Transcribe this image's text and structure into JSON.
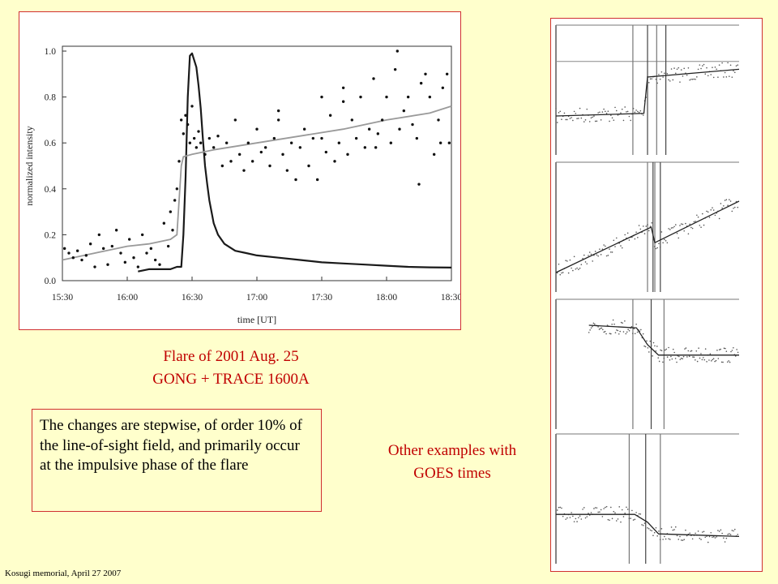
{
  "caption": {
    "line1": "Flare of 2001 Aug. 25",
    "line2": "GONG + TRACE 1600A"
  },
  "note": {
    "text": "The changes are stepwise, of order 10% of the line-of-sight field, and primarily occur at the impulsive phase of the flare"
  },
  "other_caption": {
    "line1": "Other examples with",
    "line2": "GOES times"
  },
  "footer": "Kosugi memorial, April 27 2007",
  "chart_data": {
    "type": "line",
    "title": "",
    "xlabel": "time [UT]",
    "ylabel": "normalized intensity",
    "xticks": [
      "15:30",
      "16:00",
      "16:30",
      "17:00",
      "17:30",
      "18:00",
      "18:30"
    ],
    "xticks_min": [
      0,
      30,
      60,
      90,
      120,
      150,
      180
    ],
    "yticks": [
      "0.0",
      "0.2",
      "0.4",
      "0.6",
      "0.8",
      "1.0"
    ],
    "yticks_val": [
      0,
      0.2,
      0.4,
      0.6,
      0.8,
      1.0
    ],
    "xlim_min": [
      0,
      180
    ],
    "ylim": [
      0,
      1.0
    ],
    "grid": false,
    "series": [
      {
        "style": "thick-black-line",
        "x_min": [
          35,
          40,
          45,
          50,
          53,
          55,
          56,
          57,
          58,
          59,
          60,
          62,
          63,
          64,
          65,
          66,
          67,
          68,
          69,
          70,
          72,
          75,
          80,
          85,
          90,
          100,
          110,
          120,
          130,
          140,
          150,
          160,
          170,
          180
        ],
        "y": [
          0.04,
          0.05,
          0.05,
          0.05,
          0.06,
          0.06,
          0.2,
          0.45,
          0.8,
          0.98,
          0.99,
          0.93,
          0.85,
          0.75,
          0.62,
          0.5,
          0.42,
          0.35,
          0.3,
          0.25,
          0.2,
          0.16,
          0.13,
          0.12,
          0.11,
          0.1,
          0.09,
          0.08,
          0.075,
          0.07,
          0.065,
          0.06,
          0.058,
          0.057
        ]
      },
      {
        "style": "gray-line",
        "x_min": [
          0,
          10,
          20,
          30,
          40,
          50,
          53,
          54,
          55,
          56,
          60,
          70,
          90,
          110,
          130,
          150,
          170,
          180
        ],
        "y": [
          0.09,
          0.11,
          0.13,
          0.15,
          0.16,
          0.18,
          0.2,
          0.35,
          0.5,
          0.54,
          0.55,
          0.57,
          0.6,
          0.63,
          0.66,
          0.7,
          0.73,
          0.76
        ]
      },
      {
        "style": "dots",
        "x_min": [
          1,
          3,
          5,
          7,
          9,
          11,
          13,
          15,
          17,
          19,
          21,
          23,
          25,
          27,
          29,
          31,
          33,
          35,
          37,
          39,
          41,
          43,
          45,
          47,
          49,
          50,
          51,
          52,
          53,
          54,
          55,
          56,
          57,
          58,
          59,
          60,
          61,
          62,
          63,
          64,
          66,
          68,
          70,
          72,
          74,
          76,
          78,
          80,
          82,
          84,
          86,
          88,
          90,
          92,
          94,
          96,
          98,
          100,
          102,
          104,
          106,
          108,
          110,
          112,
          114,
          116,
          118,
          120,
          122,
          124,
          126,
          128,
          130,
          132,
          134,
          136,
          138,
          140,
          142,
          144,
          146,
          148,
          150,
          152,
          154,
          156,
          158,
          160,
          162,
          164,
          166,
          168,
          170,
          172,
          174,
          176,
          178,
          179,
          100,
          120,
          130,
          145,
          155,
          165,
          175
        ],
        "y": [
          0.14,
          0.12,
          0.1,
          0.13,
          0.09,
          0.11,
          0.16,
          0.06,
          0.2,
          0.14,
          0.07,
          0.15,
          0.22,
          0.12,
          0.08,
          0.18,
          0.1,
          0.06,
          0.2,
          0.12,
          0.14,
          0.09,
          0.07,
          0.25,
          0.15,
          0.3,
          0.22,
          0.35,
          0.4,
          0.52,
          0.7,
          0.64,
          0.72,
          0.68,
          0.6,
          0.76,
          0.62,
          0.58,
          0.65,
          0.6,
          0.55,
          0.62,
          0.58,
          0.63,
          0.5,
          0.6,
          0.52,
          0.7,
          0.55,
          0.48,
          0.6,
          0.52,
          0.66,
          0.56,
          0.58,
          0.5,
          0.62,
          0.7,
          0.55,
          0.48,
          0.6,
          0.44,
          0.58,
          0.66,
          0.5,
          0.62,
          0.44,
          0.8,
          0.56,
          0.72,
          0.52,
          0.6,
          0.84,
          0.55,
          0.7,
          0.62,
          0.8,
          0.58,
          0.66,
          0.88,
          0.64,
          0.7,
          0.8,
          0.6,
          0.92,
          0.66,
          0.74,
          0.8,
          0.68,
          0.62,
          0.86,
          0.9,
          0.8,
          0.55,
          0.7,
          0.84,
          0.9,
          0.6,
          0.74,
          0.62,
          0.78,
          0.58,
          1.0,
          0.42,
          0.6
        ]
      }
    ]
  },
  "examples": [
    {
      "vlines": [
        0.42,
        0.5,
        0.55,
        0.6
      ],
      "hline_level": 0.28,
      "fit": [
        [
          0.0,
          0.7
        ],
        [
          0.48,
          0.68
        ],
        [
          0.5,
          0.4
        ],
        [
          1.0,
          0.34
        ]
      ]
    },
    {
      "vlines": [
        0.5,
        0.53,
        0.54,
        0.57
      ],
      "fit": [
        [
          0.0,
          0.85
        ],
        [
          0.52,
          0.5
        ],
        [
          0.54,
          0.62
        ],
        [
          1.0,
          0.3
        ]
      ]
    },
    {
      "vlines": [
        0.42,
        0.52,
        0.59
      ],
      "fit": [
        [
          0.18,
          0.2
        ],
        [
          0.44,
          0.22
        ],
        [
          0.5,
          0.35
        ],
        [
          0.56,
          0.43
        ],
        [
          1.0,
          0.43
        ]
      ]
    },
    {
      "vlines": [
        0.4,
        0.49,
        0.57
      ],
      "fit": [
        [
          0.0,
          0.62
        ],
        [
          0.43,
          0.62
        ],
        [
          0.5,
          0.68
        ],
        [
          0.56,
          0.77
        ],
        [
          1.0,
          0.79
        ]
      ]
    }
  ]
}
